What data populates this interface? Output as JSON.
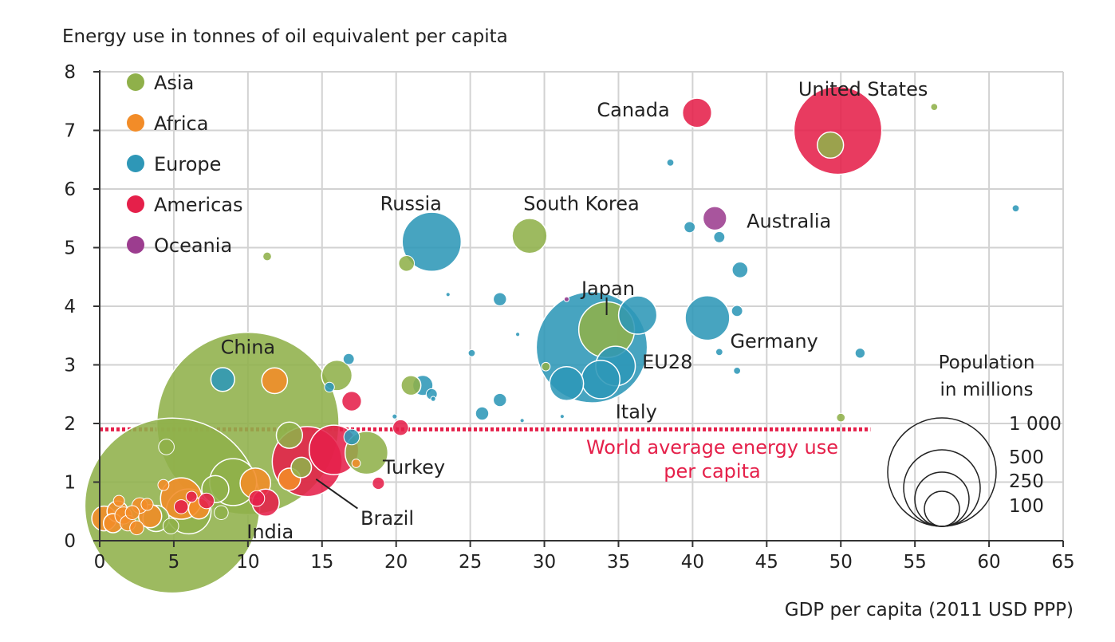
{
  "chart_data": {
    "type": "scatter",
    "title": "",
    "ylabel": "Energy use in tonnes of oil equivalent per capita",
    "xlabel": "GDP per capita (2011 USD PPP)",
    "xlim": [
      0,
      65
    ],
    "ylim": [
      0,
      8
    ],
    "x_ticks": [
      "0",
      "5",
      "10",
      "15",
      "20",
      "25",
      "30",
      "35",
      "40",
      "45",
      "50",
      "55",
      "60",
      "65"
    ],
    "y_ticks": [
      "0",
      "1",
      "2",
      "3",
      "4",
      "5",
      "6",
      "7",
      "8"
    ],
    "grid": true,
    "legend_placement": "top-left",
    "regions": [
      {
        "name": "Asia",
        "color": "#8fb04a"
      },
      {
        "name": "Africa",
        "color": "#f28c28"
      },
      {
        "name": "Europe",
        "color": "#2e97b7"
      },
      {
        "name": "Americas",
        "color": "#e5204a"
      },
      {
        "name": "Oceania",
        "color": "#9c3d8f"
      }
    ],
    "world_average": {
      "value": 1.9,
      "label_lines": [
        "World average energy use",
        "per capita"
      ],
      "color": "#e5204a"
    },
    "size_legend": {
      "title_lines": [
        "Population",
        "in millions"
      ],
      "values": [
        1000,
        500,
        250,
        100
      ],
      "labels": [
        "1 000",
        "500",
        "250",
        "100"
      ]
    },
    "labels": [
      {
        "text": "United States",
        "x": 51.5,
        "y": 7.7
      },
      {
        "text": "Canada",
        "x": 36,
        "y": 7.35
      },
      {
        "text": "Russia",
        "x": 21,
        "y": 5.75
      },
      {
        "text": "South Korea",
        "x": 32.5,
        "y": 5.75
      },
      {
        "text": "Australia",
        "x": 46.5,
        "y": 5.45
      },
      {
        "text": "Japan",
        "x": 34.3,
        "y": 4.3
      },
      {
        "text": "Germany",
        "x": 45.5,
        "y": 3.4
      },
      {
        "text": "EU28",
        "x": 38.3,
        "y": 3.05
      },
      {
        "text": "Italy",
        "x": 36.2,
        "y": 2.2
      },
      {
        "text": "China",
        "x": 10,
        "y": 3.3
      },
      {
        "text": "Turkey",
        "x": 21.2,
        "y": 1.25
      },
      {
        "text": "Brazil",
        "x": 19.4,
        "y": 0.38
      },
      {
        "text": "India",
        "x": 11.5,
        "y": 0.15
      }
    ],
    "points": [
      {
        "name": "United States",
        "x": 49.8,
        "y": 7.0,
        "pop": 316,
        "region": "Americas"
      },
      {
        "name": "Canada",
        "x": 40.3,
        "y": 7.3,
        "pop": 35,
        "region": "Americas"
      },
      {
        "name": "Russia",
        "x": 22.4,
        "y": 5.1,
        "pop": 143,
        "region": "Europe"
      },
      {
        "name": "South Korea",
        "x": 29.0,
        "y": 5.2,
        "pop": 50,
        "region": "Asia"
      },
      {
        "name": "Australia",
        "x": 41.5,
        "y": 5.5,
        "pop": 23,
        "region": "Oceania"
      },
      {
        "name": "EU28",
        "x": 33.2,
        "y": 3.3,
        "pop": 505,
        "region": "Europe"
      },
      {
        "name": "Japan",
        "x": 34.2,
        "y": 3.6,
        "pop": 127,
        "region": "Asia"
      },
      {
        "name": "Germany",
        "x": 41.0,
        "y": 3.8,
        "pop": 81,
        "region": "Europe"
      },
      {
        "name": "Italy",
        "x": 33.8,
        "y": 2.75,
        "pop": 60,
        "region": "Europe"
      },
      {
        "name": "China",
        "x": 10.0,
        "y": 2.0,
        "pop": 1357,
        "region": "Asia"
      },
      {
        "name": "India",
        "x": 4.9,
        "y": 0.6,
        "pop": 1252,
        "region": "Asia"
      },
      {
        "name": "Brazil",
        "x": 14.0,
        "y": 1.35,
        "pop": 200,
        "region": "Americas"
      },
      {
        "name": "Turkey",
        "x": 18.0,
        "y": 1.5,
        "pop": 75,
        "region": "Asia"
      },
      {
        "x": 34.8,
        "y": 2.98,
        "pop": 64,
        "region": "Europe"
      },
      {
        "x": 31.5,
        "y": 2.68,
        "pop": 47,
        "region": "Europe"
      },
      {
        "x": 36.3,
        "y": 3.85,
        "pop": 60,
        "region": "Europe"
      },
      {
        "x": 49.3,
        "y": 6.75,
        "pop": 28,
        "region": "Asia"
      },
      {
        "x": 56.3,
        "y": 7.4,
        "pop": 2,
        "region": "Asia"
      },
      {
        "x": 38.5,
        "y": 6.45,
        "pop": 2,
        "region": "Europe"
      },
      {
        "x": 61.8,
        "y": 5.67,
        "pop": 2,
        "region": "Europe"
      },
      {
        "x": 39.8,
        "y": 5.35,
        "pop": 5,
        "region": "Europe"
      },
      {
        "x": 41.8,
        "y": 5.18,
        "pop": 5,
        "region": "Europe"
      },
      {
        "x": 43.2,
        "y": 4.62,
        "pop": 10,
        "region": "Europe"
      },
      {
        "x": 43.0,
        "y": 3.92,
        "pop": 5,
        "region": "Europe"
      },
      {
        "x": 41.8,
        "y": 3.22,
        "pop": 2,
        "region": "Europe"
      },
      {
        "x": 43.0,
        "y": 2.9,
        "pop": 2,
        "region": "Europe"
      },
      {
        "x": 51.3,
        "y": 3.2,
        "pop": 4,
        "region": "Europe"
      },
      {
        "x": 50.0,
        "y": 2.1,
        "pop": 3,
        "region": "Asia"
      },
      {
        "x": 27.0,
        "y": 4.12,
        "pop": 7,
        "region": "Europe"
      },
      {
        "x": 31.5,
        "y": 4.12,
        "pop": 1,
        "region": "Oceania"
      },
      {
        "x": 23.5,
        "y": 4.2,
        "pop": 0.3,
        "region": "Europe"
      },
      {
        "x": 28.2,
        "y": 3.52,
        "pop": 0.3,
        "region": "Europe"
      },
      {
        "x": 25.1,
        "y": 3.2,
        "pop": 2,
        "region": "Europe"
      },
      {
        "x": 27.0,
        "y": 2.4,
        "pop": 7,
        "region": "Europe"
      },
      {
        "x": 25.8,
        "y": 2.17,
        "pop": 7,
        "region": "Europe"
      },
      {
        "x": 30.1,
        "y": 2.97,
        "pop": 3,
        "region": "Asia"
      },
      {
        "x": 31.2,
        "y": 2.12,
        "pop": 0.3,
        "region": "Europe"
      },
      {
        "x": 28.5,
        "y": 2.05,
        "pop": 0.1,
        "region": "Europe"
      },
      {
        "x": 20.7,
        "y": 4.73,
        "pop": 10,
        "region": "Asia"
      },
      {
        "x": 11.3,
        "y": 4.85,
        "pop": 3,
        "region": "Asia"
      },
      {
        "x": 21.8,
        "y": 2.65,
        "pop": 17,
        "region": "Europe"
      },
      {
        "x": 21.0,
        "y": 2.65,
        "pop": 16,
        "region": "Asia"
      },
      {
        "x": 22.4,
        "y": 2.5,
        "pop": 5,
        "region": "Europe"
      },
      {
        "x": 22.5,
        "y": 2.42,
        "pop": 1,
        "region": "Europe"
      },
      {
        "x": 19.9,
        "y": 2.12,
        "pop": 1,
        "region": "Europe"
      },
      {
        "x": 20.3,
        "y": 1.93,
        "pop": 10,
        "region": "Americas"
      },
      {
        "x": 18.8,
        "y": 0.98,
        "pop": 6,
        "region": "Americas"
      },
      {
        "x": 16.0,
        "y": 2.82,
        "pop": 38,
        "region": "Asia"
      },
      {
        "x": 16.8,
        "y": 3.1,
        "pop": 5,
        "region": "Europe"
      },
      {
        "x": 15.5,
        "y": 2.62,
        "pop": 4,
        "region": "Europe"
      },
      {
        "x": 17.0,
        "y": 2.38,
        "pop": 16,
        "region": "Americas"
      },
      {
        "x": 17.0,
        "y": 1.77,
        "pop": 10,
        "region": "Europe"
      },
      {
        "x": 8.3,
        "y": 2.75,
        "pop": 23,
        "region": "Europe"
      },
      {
        "x": 11.8,
        "y": 2.73,
        "pop": 27,
        "region": "Africa"
      },
      {
        "x": 15.8,
        "y": 1.55,
        "pop": 100,
        "region": "Americas"
      },
      {
        "x": 12.8,
        "y": 1.8,
        "pop": 28,
        "region": "Asia"
      },
      {
        "x": 13.6,
        "y": 1.25,
        "pop": 17,
        "region": "Asia"
      },
      {
        "x": 17.3,
        "y": 1.32,
        "pop": 3,
        "region": "Africa"
      },
      {
        "x": 11.2,
        "y": 0.65,
        "pop": 30,
        "region": "Americas"
      },
      {
        "x": 10.6,
        "y": 0.72,
        "pop": 10,
        "region": "Americas"
      },
      {
        "x": 10.5,
        "y": 0.98,
        "pop": 38,
        "region": "Africa"
      },
      {
        "x": 12.8,
        "y": 1.05,
        "pop": 20,
        "region": "Africa"
      },
      {
        "x": 9.0,
        "y": 1.0,
        "pop": 90,
        "region": "Asia"
      },
      {
        "x": 7.8,
        "y": 0.88,
        "pop": 30,
        "region": "Asia"
      },
      {
        "x": 6.0,
        "y": 0.5,
        "pop": 82,
        "region": "Asia"
      },
      {
        "x": 5.5,
        "y": 0.72,
        "pop": 70,
        "region": "Africa"
      },
      {
        "x": 4.5,
        "y": 1.6,
        "pop": 10,
        "region": "Asia"
      },
      {
        "x": 8.2,
        "y": 0.48,
        "pop": 8,
        "region": "Asia"
      },
      {
        "x": 6.7,
        "y": 0.55,
        "pop": 18,
        "region": "Africa"
      },
      {
        "x": 7.2,
        "y": 0.68,
        "pop": 10,
        "region": "Americas"
      },
      {
        "x": 6.2,
        "y": 0.75,
        "pop": 5,
        "region": "Americas"
      },
      {
        "x": 3.8,
        "y": 0.38,
        "pop": 28,
        "region": "Asia"
      },
      {
        "x": 3.4,
        "y": 0.42,
        "pop": 22,
        "region": "Africa"
      },
      {
        "x": 2.7,
        "y": 0.6,
        "pop": 10,
        "region": "Africa"
      },
      {
        "x": 2.2,
        "y": 0.48,
        "pop": 8,
        "region": "Africa"
      },
      {
        "x": 1.6,
        "y": 0.43,
        "pop": 12,
        "region": "Africa"
      },
      {
        "x": 1.2,
        "y": 0.5,
        "pop": 18,
        "region": "Africa"
      },
      {
        "x": 1.9,
        "y": 0.3,
        "pop": 10,
        "region": "Africa"
      },
      {
        "x": 0.3,
        "y": 0.38,
        "pop": 25,
        "region": "Africa"
      },
      {
        "x": 0.9,
        "y": 0.3,
        "pop": 15,
        "region": "Africa"
      },
      {
        "x": 2.5,
        "y": 0.22,
        "pop": 8,
        "region": "Africa"
      },
      {
        "x": 1.3,
        "y": 0.68,
        "pop": 5,
        "region": "Africa"
      },
      {
        "x": 4.3,
        "y": 0.95,
        "pop": 5,
        "region": "Africa"
      },
      {
        "x": 3.2,
        "y": 0.62,
        "pop": 6,
        "region": "Africa"
      },
      {
        "x": 4.8,
        "y": 0.25,
        "pop": 10,
        "region": "Asia"
      },
      {
        "x": 5.5,
        "y": 0.58,
        "pop": 8,
        "region": "Americas"
      }
    ]
  }
}
